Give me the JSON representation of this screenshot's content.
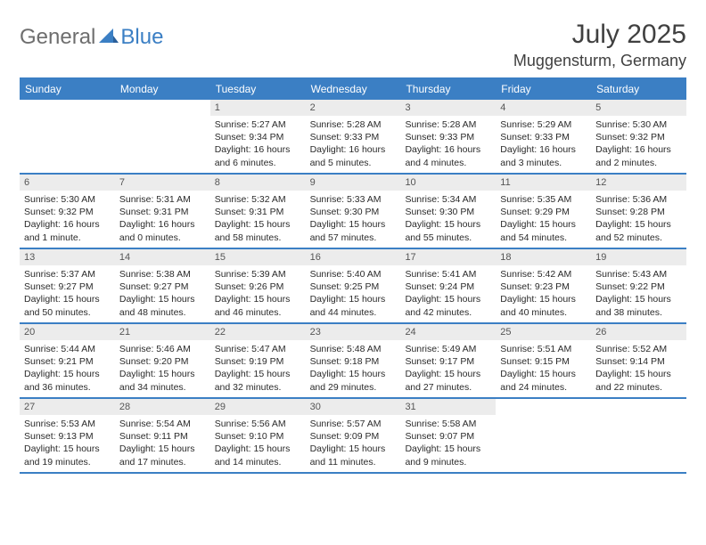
{
  "logo": {
    "part1": "General",
    "part2": "Blue"
  },
  "title": "July 2025",
  "location": "Muggensturm, Germany",
  "colors": {
    "accent": "#3b7fc4",
    "header_text": "#ffffff",
    "daynum_bg": "#ececec",
    "daynum_fg": "#555555",
    "body_text": "#2a2a2a",
    "logo_grey": "#6e6e6e"
  },
  "calendar": {
    "day_labels": [
      "Sunday",
      "Monday",
      "Tuesday",
      "Wednesday",
      "Thursday",
      "Friday",
      "Saturday"
    ],
    "weeks": [
      [
        {
          "n": "",
          "t": "",
          "empty": true
        },
        {
          "n": "",
          "t": "",
          "empty": true
        },
        {
          "n": "1",
          "t": "Sunrise: 5:27 AM\nSunset: 9:34 PM\nDaylight: 16 hours and 6 minutes."
        },
        {
          "n": "2",
          "t": "Sunrise: 5:28 AM\nSunset: 9:33 PM\nDaylight: 16 hours and 5 minutes."
        },
        {
          "n": "3",
          "t": "Sunrise: 5:28 AM\nSunset: 9:33 PM\nDaylight: 16 hours and 4 minutes."
        },
        {
          "n": "4",
          "t": "Sunrise: 5:29 AM\nSunset: 9:33 PM\nDaylight: 16 hours and 3 minutes."
        },
        {
          "n": "5",
          "t": "Sunrise: 5:30 AM\nSunset: 9:32 PM\nDaylight: 16 hours and 2 minutes."
        }
      ],
      [
        {
          "n": "6",
          "t": "Sunrise: 5:30 AM\nSunset: 9:32 PM\nDaylight: 16 hours and 1 minute."
        },
        {
          "n": "7",
          "t": "Sunrise: 5:31 AM\nSunset: 9:31 PM\nDaylight: 16 hours and 0 minutes."
        },
        {
          "n": "8",
          "t": "Sunrise: 5:32 AM\nSunset: 9:31 PM\nDaylight: 15 hours and 58 minutes."
        },
        {
          "n": "9",
          "t": "Sunrise: 5:33 AM\nSunset: 9:30 PM\nDaylight: 15 hours and 57 minutes."
        },
        {
          "n": "10",
          "t": "Sunrise: 5:34 AM\nSunset: 9:30 PM\nDaylight: 15 hours and 55 minutes."
        },
        {
          "n": "11",
          "t": "Sunrise: 5:35 AM\nSunset: 9:29 PM\nDaylight: 15 hours and 54 minutes."
        },
        {
          "n": "12",
          "t": "Sunrise: 5:36 AM\nSunset: 9:28 PM\nDaylight: 15 hours and 52 minutes."
        }
      ],
      [
        {
          "n": "13",
          "t": "Sunrise: 5:37 AM\nSunset: 9:27 PM\nDaylight: 15 hours and 50 minutes."
        },
        {
          "n": "14",
          "t": "Sunrise: 5:38 AM\nSunset: 9:27 PM\nDaylight: 15 hours and 48 minutes."
        },
        {
          "n": "15",
          "t": "Sunrise: 5:39 AM\nSunset: 9:26 PM\nDaylight: 15 hours and 46 minutes."
        },
        {
          "n": "16",
          "t": "Sunrise: 5:40 AM\nSunset: 9:25 PM\nDaylight: 15 hours and 44 minutes."
        },
        {
          "n": "17",
          "t": "Sunrise: 5:41 AM\nSunset: 9:24 PM\nDaylight: 15 hours and 42 minutes."
        },
        {
          "n": "18",
          "t": "Sunrise: 5:42 AM\nSunset: 9:23 PM\nDaylight: 15 hours and 40 minutes."
        },
        {
          "n": "19",
          "t": "Sunrise: 5:43 AM\nSunset: 9:22 PM\nDaylight: 15 hours and 38 minutes."
        }
      ],
      [
        {
          "n": "20",
          "t": "Sunrise: 5:44 AM\nSunset: 9:21 PM\nDaylight: 15 hours and 36 minutes."
        },
        {
          "n": "21",
          "t": "Sunrise: 5:46 AM\nSunset: 9:20 PM\nDaylight: 15 hours and 34 minutes."
        },
        {
          "n": "22",
          "t": "Sunrise: 5:47 AM\nSunset: 9:19 PM\nDaylight: 15 hours and 32 minutes."
        },
        {
          "n": "23",
          "t": "Sunrise: 5:48 AM\nSunset: 9:18 PM\nDaylight: 15 hours and 29 minutes."
        },
        {
          "n": "24",
          "t": "Sunrise: 5:49 AM\nSunset: 9:17 PM\nDaylight: 15 hours and 27 minutes."
        },
        {
          "n": "25",
          "t": "Sunrise: 5:51 AM\nSunset: 9:15 PM\nDaylight: 15 hours and 24 minutes."
        },
        {
          "n": "26",
          "t": "Sunrise: 5:52 AM\nSunset: 9:14 PM\nDaylight: 15 hours and 22 minutes."
        }
      ],
      [
        {
          "n": "27",
          "t": "Sunrise: 5:53 AM\nSunset: 9:13 PM\nDaylight: 15 hours and 19 minutes."
        },
        {
          "n": "28",
          "t": "Sunrise: 5:54 AM\nSunset: 9:11 PM\nDaylight: 15 hours and 17 minutes."
        },
        {
          "n": "29",
          "t": "Sunrise: 5:56 AM\nSunset: 9:10 PM\nDaylight: 15 hours and 14 minutes."
        },
        {
          "n": "30",
          "t": "Sunrise: 5:57 AM\nSunset: 9:09 PM\nDaylight: 15 hours and 11 minutes."
        },
        {
          "n": "31",
          "t": "Sunrise: 5:58 AM\nSunset: 9:07 PM\nDaylight: 15 hours and 9 minutes."
        },
        {
          "n": "",
          "t": "",
          "empty": true
        },
        {
          "n": "",
          "t": "",
          "empty": true
        }
      ]
    ]
  }
}
